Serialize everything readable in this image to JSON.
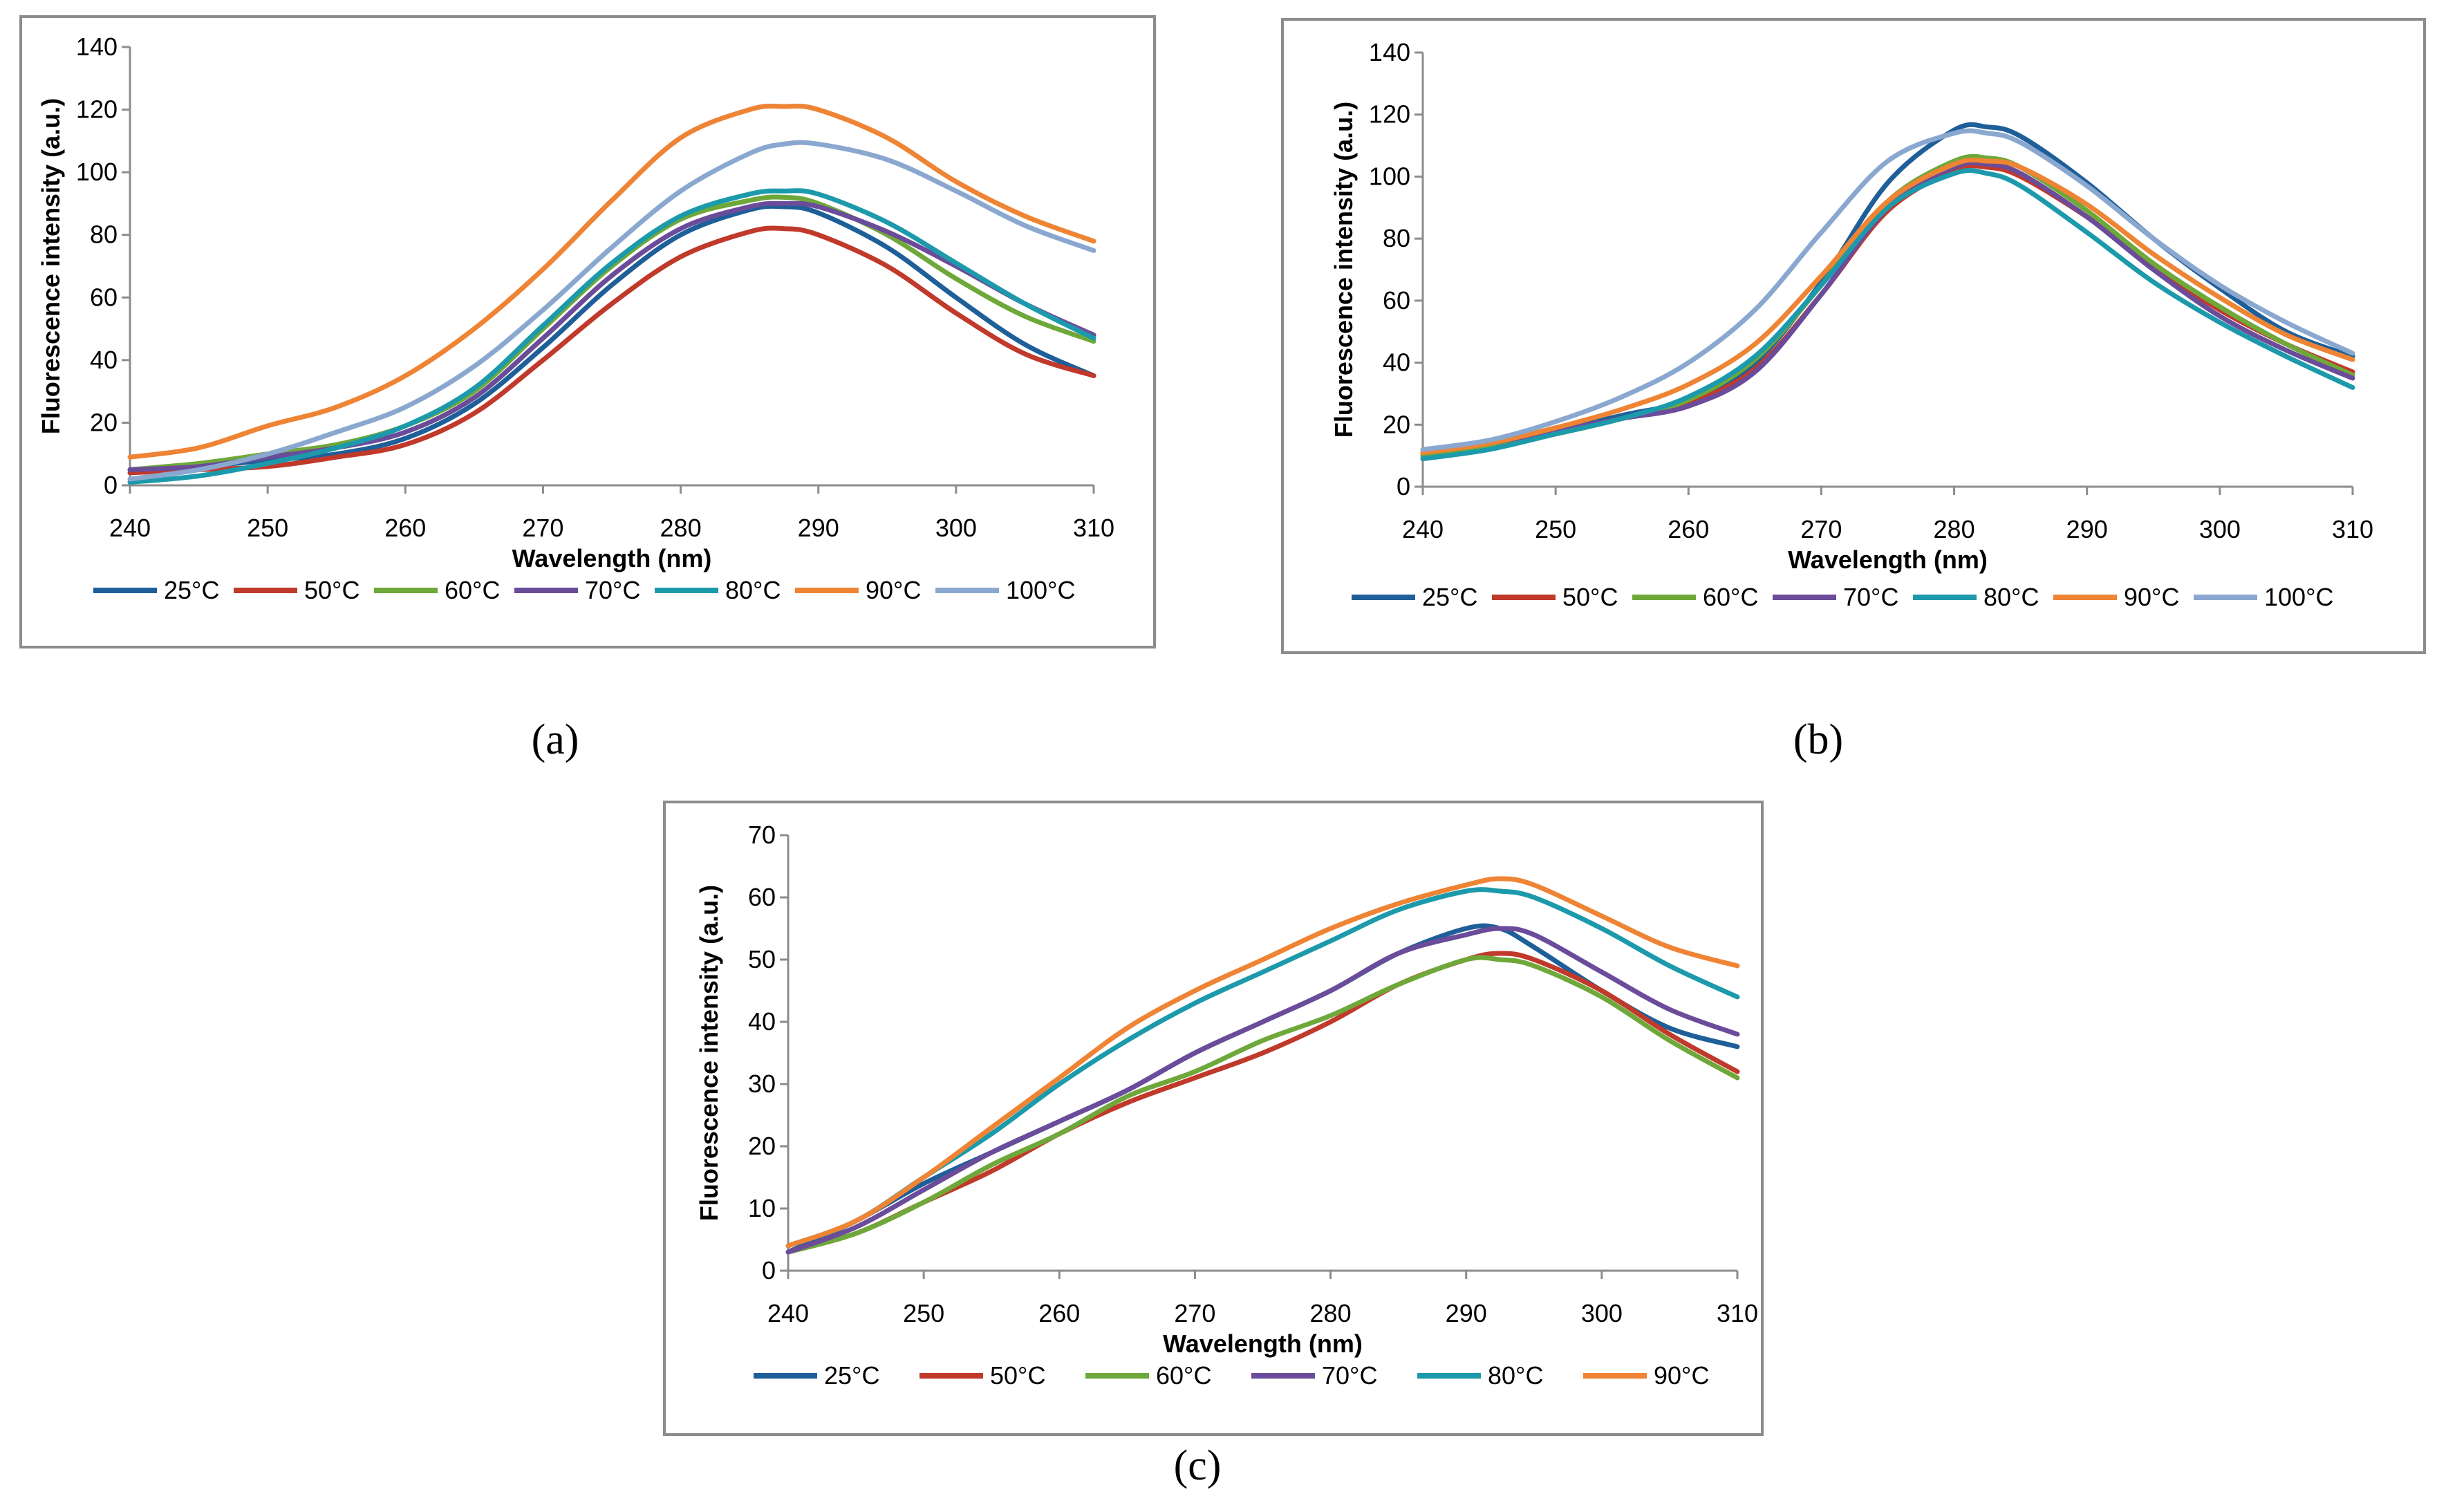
{
  "chart_data": [
    {
      "id": "a",
      "type": "line",
      "caption": "(a)",
      "xlabel": "Wavelength (nm)",
      "ylabel": "Fluorescence intensity (a.u.)",
      "xlim": [
        240,
        310
      ],
      "ylim": [
        0,
        140
      ],
      "xticks": [
        240,
        250,
        260,
        270,
        280,
        290,
        300,
        310
      ],
      "yticks": [
        0,
        20,
        40,
        60,
        80,
        100,
        120,
        140
      ],
      "ytick_labels": [
        "0",
        "20",
        "40",
        "60",
        "80",
        "100",
        "120",
        "140"
      ],
      "legend_position": "bottom",
      "x": [
        240,
        245,
        250,
        255,
        260,
        265,
        270,
        275,
        280,
        285,
        287.5,
        290,
        295,
        300,
        305,
        310
      ],
      "series": [
        {
          "name": "25°C",
          "color": "#1f5f99",
          "values": [
            5,
            6,
            8,
            10,
            15,
            26,
            44,
            64,
            80,
            88,
            89,
            87,
            76,
            60,
            45,
            35
          ]
        },
        {
          "name": "50°C",
          "color": "#c0392b",
          "values": [
            4,
            5,
            6,
            9,
            13,
            23,
            40,
            58,
            73,
            81,
            82,
            80,
            70,
            55,
            42,
            35
          ]
        },
        {
          "name": "60°C",
          "color": "#6fa83a",
          "values": [
            5,
            7,
            10,
            13,
            19,
            30,
            50,
            70,
            85,
            91,
            92,
            90,
            80,
            66,
            54,
            46
          ]
        },
        {
          "name": "70°C",
          "color": "#6b4c9a",
          "values": [
            5,
            6,
            9,
            12,
            17,
            28,
            47,
            67,
            82,
            89,
            90,
            89,
            81,
            70,
            58,
            48
          ]
        },
        {
          "name": "80°C",
          "color": "#1c9aab",
          "values": [
            1,
            3,
            7,
            12,
            19,
            31,
            51,
            71,
            86,
            93,
            94,
            93,
            84,
            71,
            58,
            47
          ]
        },
        {
          "name": "90°C",
          "color": "#ee8434",
          "values": [
            9,
            12,
            19,
            25,
            35,
            50,
            69,
            91,
            111,
            120,
            121,
            120,
            111,
            97,
            86,
            78
          ]
        },
        {
          "name": "100°C",
          "color": "#8aa8cf",
          "values": [
            2,
            5,
            10,
            17,
            25,
            38,
            56,
            76,
            94,
            106,
            109,
            109,
            104,
            94,
            83,
            75
          ]
        }
      ]
    },
    {
      "id": "b",
      "type": "line",
      "caption": "(b)",
      "xlabel": "Wavelength (nm)",
      "ylabel": "Fluorescence intensity (a.u.)",
      "xlim": [
        240,
        310
      ],
      "ylim": [
        0,
        140
      ],
      "xticks": [
        240,
        250,
        260,
        270,
        280,
        290,
        300,
        310
      ],
      "yticks": [
        0,
        20,
        40,
        60,
        80,
        100,
        120,
        140
      ],
      "ytick_labels": [
        "0",
        "20",
        "40",
        "60",
        "80",
        "100",
        "120",
        "140"
      ],
      "legend_position": "bottom",
      "x": [
        240,
        245,
        250,
        255,
        260,
        265,
        270,
        275,
        280,
        282.5,
        285,
        290,
        295,
        300,
        305,
        310
      ],
      "series": [
        {
          "name": "25°C",
          "color": "#1f5f99",
          "values": [
            10,
            13,
            18,
            23,
            28,
            40,
            66,
            98,
            115,
            116,
            113,
            98,
            80,
            64,
            50,
            42
          ]
        },
        {
          "name": "50°C",
          "color": "#c0392b",
          "values": [
            10,
            13,
            17,
            22,
            27,
            38,
            62,
            89,
            102,
            103,
            100,
            87,
            71,
            57,
            46,
            37
          ]
        },
        {
          "name": "60°C",
          "color": "#6fa83a",
          "values": [
            10,
            13,
            17,
            22,
            28,
            41,
            65,
            92,
            105,
            106,
            103,
            89,
            72,
            58,
            46,
            36
          ]
        },
        {
          "name": "70°C",
          "color": "#6b4c9a",
          "values": [
            11,
            14,
            18,
            22,
            26,
            37,
            62,
            90,
            103,
            104,
            101,
            87,
            70,
            55,
            44,
            35
          ]
        },
        {
          "name": "80°C",
          "color": "#1c9aab",
          "values": [
            9,
            12,
            17,
            22,
            29,
            42,
            65,
            90,
            101,
            101,
            97,
            82,
            66,
            53,
            42,
            32
          ]
        },
        {
          "name": "90°C",
          "color": "#ee8434",
          "values": [
            11,
            14,
            19,
            25,
            33,
            46,
            68,
            92,
            104,
            105,
            103,
            91,
            75,
            61,
            49,
            41
          ]
        },
        {
          "name": "100°C",
          "color": "#8aa8cf",
          "values": [
            12,
            15,
            21,
            29,
            40,
            57,
            82,
            105,
            114,
            114,
            111,
            97,
            80,
            65,
            53,
            43
          ]
        }
      ]
    },
    {
      "id": "c",
      "type": "line",
      "caption": "(c)",
      "xlabel": "Wavelength (nm)",
      "ylabel": "Fluorescence intensity (a.u.)",
      "xlim": [
        240,
        310
      ],
      "ylim": [
        0,
        70
      ],
      "xticks": [
        240,
        250,
        260,
        270,
        280,
        290,
        300,
        310
      ],
      "yticks": [
        0,
        10,
        20,
        30,
        40,
        50,
        60,
        70
      ],
      "ytick_labels": [
        "0",
        "10",
        "20",
        "30",
        "40",
        "50",
        "60",
        "70"
      ],
      "legend_position": "bottom",
      "x": [
        240,
        245,
        250,
        255,
        260,
        265,
        270,
        275,
        280,
        285,
        290,
        292.5,
        295,
        300,
        305,
        310
      ],
      "series": [
        {
          "name": "25°C",
          "color": "#1f5f99",
          "values": [
            3,
            8,
            14,
            19,
            24,
            29,
            35,
            40,
            45,
            51,
            55,
            55,
            52,
            45,
            39,
            36
          ]
        },
        {
          "name": "50°C",
          "color": "#c0392b",
          "values": [
            3,
            6,
            11,
            16,
            22,
            27,
            31,
            35,
            40,
            46,
            50,
            51,
            50,
            45,
            38,
            32
          ]
        },
        {
          "name": "60°C",
          "color": "#6fa83a",
          "values": [
            3,
            6,
            11,
            17,
            22,
            28,
            32,
            37,
            41,
            46,
            50,
            50,
            49,
            44,
            37,
            31
          ]
        },
        {
          "name": "70°C",
          "color": "#6b4c9a",
          "values": [
            3,
            7,
            13,
            19,
            24,
            29,
            35,
            40,
            45,
            51,
            54,
            55,
            54,
            48,
            42,
            38
          ]
        },
        {
          "name": "80°C",
          "color": "#1c9aab",
          "values": [
            4,
            8,
            15,
            22,
            30,
            37,
            43,
            48,
            53,
            58,
            61,
            61,
            60,
            55,
            49,
            44
          ]
        },
        {
          "name": "90°C",
          "color": "#ee8434",
          "values": [
            4,
            8,
            15,
            23,
            31,
            39,
            45,
            50,
            55,
            59,
            62,
            63,
            62,
            57,
            52,
            49
          ]
        }
      ]
    }
  ]
}
